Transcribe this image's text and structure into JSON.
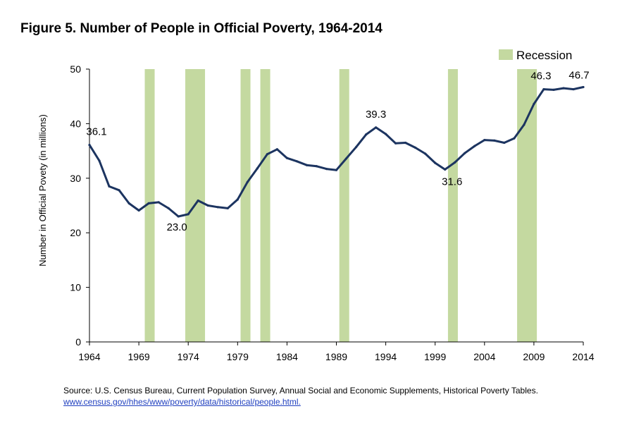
{
  "colors": {
    "line": "#1c3460",
    "recession": "#c4d9a0",
    "axis": "#000000",
    "url": "#1f3fbf"
  },
  "chart_data": {
    "type": "line",
    "title": "Figure 5. Number of People in Official Poverty, 1964-2014",
    "xlabel": "",
    "ylabel": "Number in Official Povety  (in millions)",
    "xlim": [
      1964,
      2014
    ],
    "ylim": [
      0,
      50
    ],
    "yticks": [
      0,
      10,
      20,
      30,
      40,
      50
    ],
    "xticks": [
      1964,
      1969,
      1974,
      1979,
      1984,
      1989,
      1994,
      1999,
      2004,
      2009,
      2014
    ],
    "grid": false,
    "legend": {
      "position": "top-right",
      "entries": [
        "Recession"
      ]
    },
    "recession_periods": [
      [
        1969.6,
        1970.6
      ],
      [
        1973.7,
        1975.7
      ],
      [
        1979.3,
        1980.3
      ],
      [
        1981.3,
        1982.3
      ],
      [
        1989.3,
        1990.3
      ],
      [
        2000.3,
        2001.3
      ],
      [
        2007.3,
        2009.3
      ]
    ],
    "series": [
      {
        "x": [
          1964,
          1965,
          1966,
          1967,
          1968,
          1969,
          1970,
          1971,
          1972,
          1973,
          1974,
          1975,
          1976,
          1977,
          1978,
          1979,
          1980,
          1981,
          1982,
          1983,
          1984,
          1985,
          1986,
          1987,
          1988,
          1989,
          1990,
          1991,
          1992,
          1993,
          1994,
          1995,
          1996,
          1997,
          1998,
          1999,
          2000,
          2001,
          2002,
          2003,
          2004,
          2005,
          2006,
          2007,
          2008,
          2009,
          2010,
          2011,
          2012,
          2013,
          2014
        ],
        "values": [
          36.1,
          33.2,
          28.5,
          27.8,
          25.4,
          24.1,
          25.4,
          25.6,
          24.5,
          23.0,
          23.4,
          25.9,
          25.0,
          24.7,
          24.5,
          26.1,
          29.3,
          31.8,
          34.4,
          35.3,
          33.7,
          33.1,
          32.4,
          32.2,
          31.7,
          31.5,
          33.6,
          35.7,
          38.0,
          39.3,
          38.1,
          36.4,
          36.5,
          35.6,
          34.5,
          32.8,
          31.6,
          32.9,
          34.6,
          35.9,
          37.0,
          36.9,
          36.5,
          37.3,
          39.8,
          43.6,
          46.3,
          46.2,
          46.5,
          46.3,
          46.7
        ]
      }
    ],
    "annotations": [
      {
        "x": 1964,
        "y": 36.1,
        "text": "36.1"
      },
      {
        "x": 1973,
        "y": 23.0,
        "text": "23.0"
      },
      {
        "x": 1993,
        "y": 39.3,
        "text": "39.3"
      },
      {
        "x": 2000,
        "y": 31.6,
        "text": "31.6"
      },
      {
        "x": 2010,
        "y": 46.3,
        "text": "46.3"
      },
      {
        "x": 2014,
        "y": 46.7,
        "text": "46.7"
      }
    ]
  },
  "source": {
    "text": "Source:  U.S. Census Bureau, Current Population Survey, Annual Social and Economic Supplements, Historical Poverty Tables.",
    "url": "www.census.gov/hhes/www/poverty/data/historical/people.html."
  }
}
